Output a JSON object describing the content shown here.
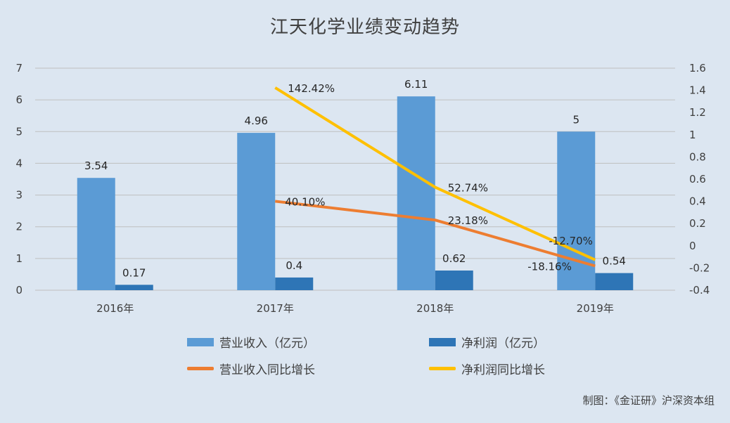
{
  "chart_data": {
    "type": "bar",
    "title": "江天化学业绩变动趋势",
    "categories": [
      "2016年",
      "2017年",
      "2018年",
      "2019年"
    ],
    "left_axis": {
      "ylim": [
        0,
        7
      ],
      "ticks": [
        "0",
        "1",
        "2",
        "3",
        "4",
        "5",
        "6",
        "7"
      ]
    },
    "right_axis": {
      "ylim": [
        -0.4,
        1.6
      ],
      "ticks": [
        "-0.4",
        "-0.2",
        "0",
        "0.2",
        "0.4",
        "0.6",
        "0.8",
        "1",
        "1.2",
        "1.4",
        "1.6"
      ]
    },
    "series": [
      {
        "name": "营业收入（亿元）",
        "type": "bar",
        "axis": "left",
        "color": "#5b9bd5",
        "values": [
          3.54,
          4.96,
          6.11,
          5
        ],
        "labels": [
          "3.54",
          "4.96",
          "6.11",
          "5"
        ]
      },
      {
        "name": "净利润（亿元）",
        "type": "bar",
        "axis": "left",
        "color": "#2e75b6",
        "values": [
          0.17,
          0.4,
          0.62,
          0.54
        ],
        "labels": [
          "0.17",
          "0.4",
          "0.62",
          "0.54"
        ]
      },
      {
        "name": "营业收入同比增长",
        "type": "line",
        "axis": "right",
        "color": "#ed7d31",
        "values": [
          null,
          0.401,
          0.2318,
          -0.1816
        ],
        "labels": [
          "",
          "40.10%",
          "23.18%",
          "-18.16%"
        ]
      },
      {
        "name": "净利润同比增长",
        "type": "line",
        "axis": "right",
        "color": "#ffc000",
        "values": [
          null,
          1.4242,
          0.5274,
          -0.127
        ],
        "labels": [
          "",
          "142.42%",
          "52.74%",
          "-12.70%"
        ]
      }
    ],
    "grid": true,
    "legend_position": "bottom"
  },
  "source_note": "制图：《金证研》沪深资本组"
}
